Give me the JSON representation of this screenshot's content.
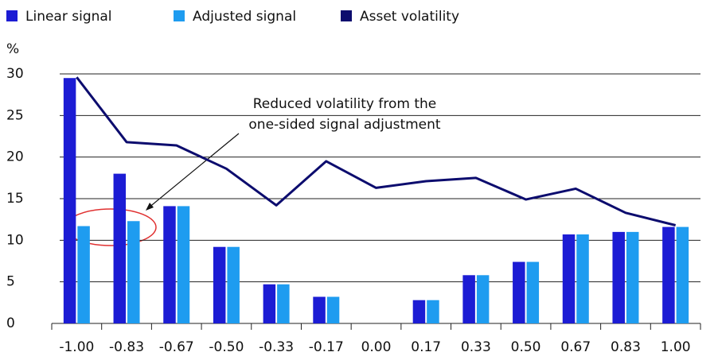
{
  "chart_data": {
    "type": "bar",
    "y_unit": "%",
    "categories": [
      "-1.00",
      "-0.83",
      "-0.67",
      "-0.50",
      "-0.33",
      "-0.17",
      "0.00",
      "0.17",
      "0.33",
      "0.50",
      "0.67",
      "0.83",
      "1.00"
    ],
    "series": [
      {
        "name": "Linear signal",
        "color": "#1c1cd4",
        "type": "bar",
        "values": [
          29.5,
          18,
          14.1,
          9.2,
          4.7,
          3.2,
          0,
          2.8,
          5.8,
          7.4,
          10.7,
          11,
          11.6
        ]
      },
      {
        "name": "Adjusted signal",
        "color": "#1e9cf0",
        "type": "bar",
        "values": [
          11.7,
          12.3,
          14.1,
          9.2,
          4.7,
          3.2,
          0,
          2.8,
          5.8,
          7.4,
          10.7,
          11,
          11.6
        ]
      },
      {
        "name": "Asset volatility",
        "color": "#0c0c6e",
        "type": "line",
        "values": [
          29.6,
          21.8,
          21.4,
          18.6,
          14.2,
          19.5,
          16.3,
          17.1,
          17.5,
          14.9,
          16.2,
          13.3,
          11.8
        ]
      }
    ],
    "annotation": [
      "Reduced volatility from the",
      "one-sided signal adjustment"
    ],
    "ylim": [
      0,
      30
    ],
    "yticks": [
      0,
      5,
      10,
      15,
      20,
      25,
      30
    ],
    "grid": true
  }
}
